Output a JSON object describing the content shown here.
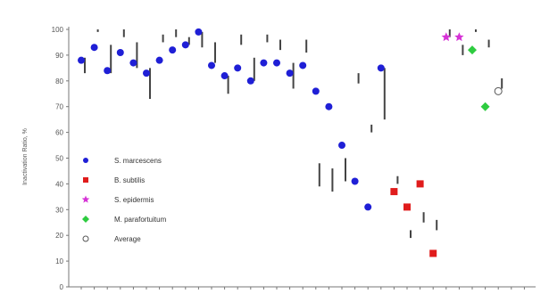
{
  "chart_data": {
    "type": "scatter",
    "ylabel": "Inactivation Ratio, %",
    "ylim": [
      0,
      100
    ],
    "yticks": [
      "0",
      "10",
      "20",
      "30",
      "40",
      "50",
      "60",
      "70",
      "80",
      "90",
      "100"
    ],
    "x_count": 35,
    "grid": false,
    "legend_position": "left-center",
    "series": [
      {
        "name": "S. marcescens",
        "color": "#1f1fd6",
        "marker": "circle",
        "points": [
          [
            1,
            88
          ],
          [
            2,
            93
          ],
          [
            3,
            84
          ],
          [
            4,
            91
          ],
          [
            5,
            87
          ],
          [
            6,
            83
          ],
          [
            7,
            88
          ],
          [
            8,
            92
          ],
          [
            9,
            94
          ],
          [
            10,
            99
          ],
          [
            11,
            86
          ],
          [
            12,
            82
          ],
          [
            13,
            85
          ],
          [
            14,
            80
          ],
          [
            15,
            87
          ],
          [
            16,
            87
          ],
          [
            17,
            83
          ],
          [
            18,
            86
          ],
          [
            19,
            76
          ],
          [
            20,
            70
          ],
          [
            21,
            55
          ],
          [
            22,
            41
          ],
          [
            23,
            31
          ],
          [
            24,
            85
          ]
        ]
      },
      {
        "name": "B. subtilis",
        "color": "#e01c1c",
        "marker": "square",
        "points": [
          [
            25,
            37
          ],
          [
            26,
            31
          ],
          [
            27,
            40
          ],
          [
            28,
            13
          ]
        ]
      },
      {
        "name": "S. epidermis",
        "color": "#d633d6",
        "marker": "star",
        "points": [
          [
            29,
            97
          ],
          [
            30,
            97
          ]
        ]
      },
      {
        "name": "M. parafortuitum",
        "color": "#2ecc40",
        "marker": "diamond",
        "points": [
          [
            31,
            92
          ],
          [
            32,
            70
          ]
        ]
      },
      {
        "name": "Average",
        "color": "#ffffff",
        "marker": "open-circle",
        "points": [
          [
            33,
            76
          ]
        ]
      }
    ],
    "range_bars": [
      [
        1,
        83,
        89
      ],
      [
        2,
        99,
        100
      ],
      [
        3,
        83,
        94
      ],
      [
        4,
        97,
        100
      ],
      [
        5,
        85,
        95
      ],
      [
        6,
        73,
        85
      ],
      [
        7,
        95,
        98
      ],
      [
        8,
        97,
        100
      ],
      [
        9,
        94,
        97
      ],
      [
        10,
        93,
        99
      ],
      [
        11,
        87,
        95
      ],
      [
        12,
        75,
        82
      ],
      [
        13,
        94,
        98
      ],
      [
        14,
        80,
        89
      ],
      [
        15,
        95,
        98
      ],
      [
        16,
        92,
        96
      ],
      [
        17,
        77,
        87
      ],
      [
        18,
        91,
        96
      ],
      [
        19,
        39,
        48
      ],
      [
        20,
        37,
        46
      ],
      [
        21,
        41,
        50
      ],
      [
        22,
        79,
        83
      ],
      [
        23,
        60,
        63
      ],
      [
        24,
        65,
        85
      ],
      [
        25,
        40,
        43
      ],
      [
        26,
        19,
        22
      ],
      [
        27,
        25,
        29
      ],
      [
        28,
        22,
        26
      ],
      [
        29,
        97,
        100
      ],
      [
        30,
        90,
        94
      ],
      [
        31,
        99,
        100
      ],
      [
        32,
        93,
        96
      ],
      [
        33,
        77,
        81
      ]
    ]
  }
}
